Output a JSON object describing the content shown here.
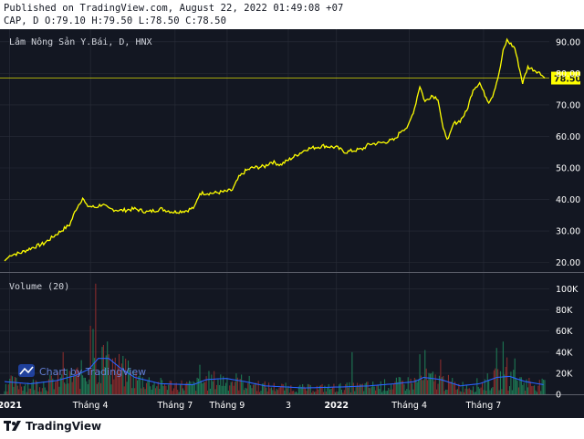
{
  "header": {
    "published": "Published on TradingView.com, August 22, 2022 01:49:08 +07",
    "ohlc": "CAP, D O:79.10 H:79.50 L:78.50 C:78.50"
  },
  "footer": {
    "brand": "TradingView"
  },
  "colors": {
    "background": "#131722",
    "price_line": "#ffff00",
    "grid": "#2a2e39",
    "axis_text": "#ffffff",
    "volume_up": "#1e7a55",
    "volume_down": "#8a2c2c",
    "volume_ma": "#2962ff"
  },
  "chart_data": {
    "type": "line",
    "title": "Lâm Nông Sản Y.Bái, D, HNX",
    "symbol": "CAP",
    "last_price": 78.5,
    "last_price_label": "78.50",
    "y_range": [
      17,
      94
    ],
    "y_ticks": [
      "20.00",
      "30.00",
      "40.00",
      "50.00",
      "60.00",
      "70.00",
      "80.00",
      "90.00"
    ],
    "y_tick_values": [
      20,
      30,
      40,
      50,
      60,
      70,
      80,
      90
    ],
    "x_labels": [
      {
        "label": "2021",
        "index": 4,
        "bold": true
      },
      {
        "label": "Tháng 4",
        "index": 66,
        "bold": false
      },
      {
        "label": "Tháng 7",
        "index": 131,
        "bold": false
      },
      {
        "label": "Tháng 9",
        "index": 171,
        "bold": false
      },
      {
        "label": "3",
        "index": 218,
        "bold": false
      },
      {
        "label": "2022",
        "index": 255,
        "bold": true
      },
      {
        "label": "Tháng 4",
        "index": 311,
        "bold": false
      },
      {
        "label": "Tháng 7",
        "index": 368,
        "bold": false
      }
    ],
    "price_keypoints": [
      [
        0,
        20.5
      ],
      [
        5,
        22.5
      ],
      [
        12,
        23
      ],
      [
        20,
        24.5
      ],
      [
        30,
        26
      ],
      [
        40,
        29
      ],
      [
        50,
        32
      ],
      [
        55,
        37
      ],
      [
        60,
        40.5
      ],
      [
        63,
        38
      ],
      [
        70,
        37.5
      ],
      [
        75,
        38.5
      ],
      [
        80,
        37
      ],
      [
        90,
        36.5
      ],
      [
        100,
        37
      ],
      [
        110,
        36
      ],
      [
        120,
        37
      ],
      [
        130,
        36
      ],
      [
        140,
        36.5
      ],
      [
        146,
        37.5
      ],
      [
        150,
        42
      ],
      [
        160,
        42
      ],
      [
        170,
        42.5
      ],
      [
        175,
        43
      ],
      [
        180,
        47
      ],
      [
        185,
        49
      ],
      [
        190,
        50
      ],
      [
        200,
        50.5
      ],
      [
        205,
        52
      ],
      [
        212,
        51
      ],
      [
        220,
        53
      ],
      [
        232,
        56
      ],
      [
        245,
        57
      ],
      [
        255,
        56.5
      ],
      [
        262,
        55
      ],
      [
        268,
        55.5
      ],
      [
        275,
        56
      ],
      [
        280,
        57.5
      ],
      [
        290,
        58
      ],
      [
        300,
        59
      ],
      [
        305,
        62
      ],
      [
        310,
        63
      ],
      [
        315,
        69
      ],
      [
        319,
        76
      ],
      [
        323,
        71
      ],
      [
        328,
        73
      ],
      [
        333,
        72
      ],
      [
        337,
        62
      ],
      [
        341,
        59
      ],
      [
        345,
        64
      ],
      [
        350,
        65
      ],
      [
        355,
        68
      ],
      [
        360,
        75
      ],
      [
        365,
        77
      ],
      [
        368,
        74
      ],
      [
        372,
        71
      ],
      [
        375,
        73
      ],
      [
        380,
        80
      ],
      [
        383,
        87
      ],
      [
        386,
        90.5
      ],
      [
        392,
        88
      ],
      [
        398,
        77
      ],
      [
        402,
        82
      ],
      [
        410,
        80.5
      ],
      [
        415,
        78.5
      ]
    ],
    "volume_pane": {
      "title": "Volume (20)",
      "y_range": [
        0,
        110000
      ],
      "y_ticks": [
        "0",
        "20K",
        "40K",
        "60K",
        "80K",
        "100K"
      ],
      "y_tick_values": [
        0,
        20000,
        40000,
        60000,
        80000,
        100000
      ],
      "spikes": [
        {
          "index": 70,
          "value": 105000,
          "dir": "down"
        },
        {
          "index": 68,
          "value": 62000,
          "dir": "up"
        },
        {
          "index": 66,
          "value": 65000,
          "dir": "down"
        },
        {
          "index": 45,
          "value": 40000,
          "dir": "down"
        },
        {
          "index": 75,
          "value": 45000,
          "dir": "up"
        },
        {
          "index": 80,
          "value": 38000,
          "dir": "down"
        },
        {
          "index": 95,
          "value": 32000,
          "dir": "up"
        },
        {
          "index": 150,
          "value": 28000,
          "dir": "up"
        },
        {
          "index": 267,
          "value": 40000,
          "dir": "up"
        },
        {
          "index": 319,
          "value": 38000,
          "dir": "up"
        },
        {
          "index": 323,
          "value": 42000,
          "dir": "up"
        },
        {
          "index": 335,
          "value": 33000,
          "dir": "down"
        },
        {
          "index": 378,
          "value": 44000,
          "dir": "up"
        },
        {
          "index": 383,
          "value": 50000,
          "dir": "up"
        },
        {
          "index": 386,
          "value": 35000,
          "dir": "down"
        },
        {
          "index": 392,
          "value": 34000,
          "dir": "up"
        }
      ],
      "ma_keypoints": [
        [
          0,
          12000
        ],
        [
          20,
          10000
        ],
        [
          40,
          13000
        ],
        [
          55,
          18000
        ],
        [
          65,
          24000
        ],
        [
          72,
          34000
        ],
        [
          80,
          34000
        ],
        [
          90,
          24000
        ],
        [
          100,
          16000
        ],
        [
          120,
          10000
        ],
        [
          145,
          9000
        ],
        [
          155,
          14000
        ],
        [
          170,
          15000
        ],
        [
          185,
          12000
        ],
        [
          200,
          8000
        ],
        [
          230,
          6000
        ],
        [
          260,
          7000
        ],
        [
          280,
          8000
        ],
        [
          300,
          10000
        ],
        [
          315,
          12000
        ],
        [
          322,
          16000
        ],
        [
          335,
          14000
        ],
        [
          350,
          8000
        ],
        [
          365,
          10000
        ],
        [
          378,
          16000
        ],
        [
          388,
          17000
        ],
        [
          400,
          12000
        ],
        [
          415,
          9000
        ]
      ]
    }
  },
  "watermark": "Chart by TradingView"
}
